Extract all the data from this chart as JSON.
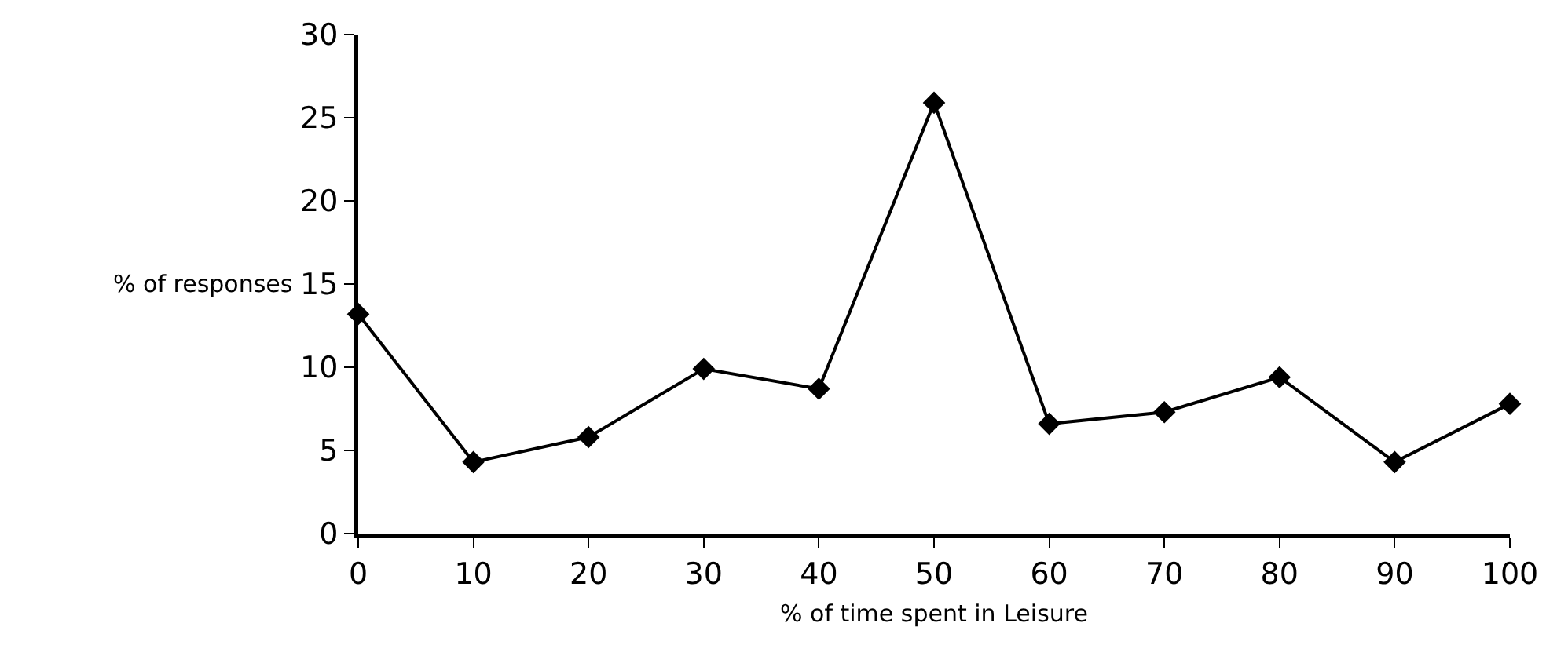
{
  "chart_data": {
    "type": "line",
    "xlabel": "% of time spent in Leisure",
    "ylabel": "% of responses",
    "x": [
      0,
      10,
      20,
      30,
      40,
      50,
      60,
      70,
      80,
      90,
      100
    ],
    "series": [
      {
        "color": "#000000",
        "values": [
          13.2,
          4.3,
          5.8,
          9.9,
          8.7,
          25.9,
          6.6,
          7.3,
          9.4,
          4.3,
          7.8
        ]
      }
    ],
    "xlim": [
      0,
      100
    ],
    "xticks": [
      0,
      10,
      20,
      30,
      40,
      50,
      60,
      70,
      80,
      90,
      100
    ],
    "ylim": [
      0,
      30
    ],
    "yticks": [
      0,
      5,
      10,
      15,
      20,
      25,
      30
    ],
    "marker": "diamond",
    "line_style": "solid",
    "legend": false
  }
}
